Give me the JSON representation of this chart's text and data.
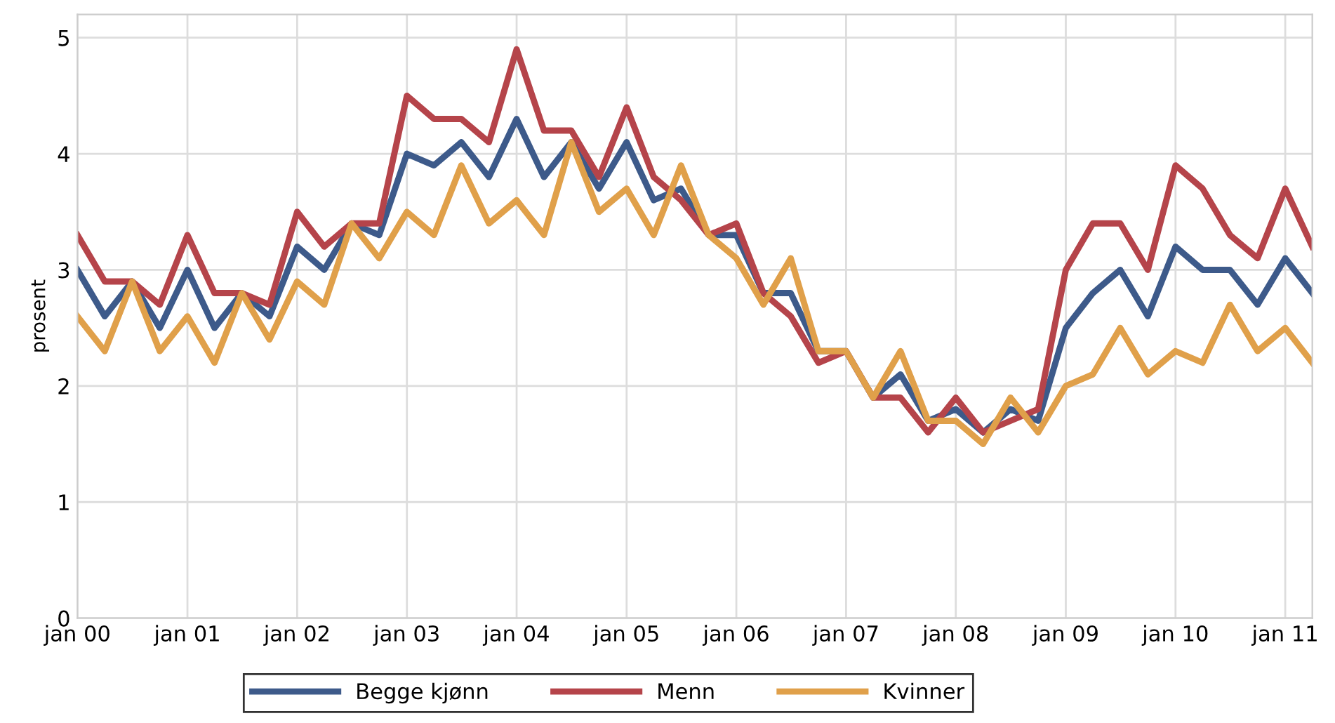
{
  "chart_data": {
    "type": "line",
    "ylabel": "prosent",
    "x": [
      "2000-01",
      "2000-04",
      "2000-07",
      "2000-10",
      "2001-01",
      "2001-04",
      "2001-07",
      "2001-10",
      "2002-01",
      "2002-04",
      "2002-07",
      "2002-10",
      "2003-01",
      "2003-04",
      "2003-07",
      "2003-10",
      "2004-01",
      "2004-04",
      "2004-07",
      "2004-10",
      "2005-01",
      "2005-04",
      "2005-07",
      "2005-10",
      "2006-01",
      "2006-04",
      "2006-07",
      "2006-10",
      "2007-01",
      "2007-04",
      "2007-07",
      "2007-10",
      "2008-01",
      "2008-04",
      "2008-07",
      "2008-10",
      "2009-01",
      "2009-04",
      "2009-07",
      "2009-10",
      "2010-01",
      "2010-04",
      "2010-07",
      "2010-10",
      "2011-01",
      "2011-04"
    ],
    "series": [
      {
        "name": "Begge kjønn",
        "color": "#3d5a8a",
        "values": [
          3.0,
          2.6,
          2.9,
          2.5,
          3.0,
          2.5,
          2.8,
          2.6,
          3.2,
          3.0,
          3.4,
          3.3,
          4.0,
          3.9,
          4.1,
          3.8,
          4.3,
          3.8,
          4.1,
          3.7,
          4.1,
          3.6,
          3.7,
          3.3,
          3.3,
          2.8,
          2.8,
          2.3,
          2.3,
          1.9,
          2.1,
          1.7,
          1.8,
          1.6,
          1.8,
          1.7,
          2.5,
          2.8,
          3.0,
          2.6,
          3.2,
          3.0,
          3.0,
          2.7,
          3.1,
          2.8
        ]
      },
      {
        "name": "Menn",
        "color": "#b5444a",
        "values": [
          3.3,
          2.9,
          2.9,
          2.7,
          3.3,
          2.8,
          2.8,
          2.7,
          3.5,
          3.2,
          3.4,
          3.4,
          4.5,
          4.3,
          4.3,
          4.1,
          4.9,
          4.2,
          4.2,
          3.8,
          4.4,
          3.8,
          3.6,
          3.3,
          3.4,
          2.8,
          2.6,
          2.2,
          2.3,
          1.9,
          1.9,
          1.6,
          1.9,
          1.6,
          1.7,
          1.8,
          3.0,
          3.4,
          3.4,
          3.0,
          3.9,
          3.7,
          3.3,
          3.1,
          3.7,
          3.2
        ]
      },
      {
        "name": "Kvinner",
        "color": "#e0a04a",
        "values": [
          2.6,
          2.3,
          2.9,
          2.3,
          2.6,
          2.2,
          2.8,
          2.4,
          2.9,
          2.7,
          3.4,
          3.1,
          3.5,
          3.3,
          3.9,
          3.4,
          3.6,
          3.3,
          4.1,
          3.5,
          3.7,
          3.3,
          3.9,
          3.3,
          3.1,
          2.7,
          3.1,
          2.3,
          2.3,
          1.9,
          2.3,
          1.7,
          1.7,
          1.5,
          1.9,
          1.6,
          2.0,
          2.1,
          2.5,
          2.1,
          2.3,
          2.2,
          2.7,
          2.3,
          2.5,
          2.2
        ]
      }
    ],
    "xlim": [
      "2000-01",
      "2011-04"
    ],
    "xticks": [
      {
        "value": "2000-01",
        "label": "jan 00"
      },
      {
        "value": "2001-01",
        "label": "jan 01"
      },
      {
        "value": "2002-01",
        "label": "jan 02"
      },
      {
        "value": "2003-01",
        "label": "jan 03"
      },
      {
        "value": "2004-01",
        "label": "jan 04"
      },
      {
        "value": "2005-01",
        "label": "jan 05"
      },
      {
        "value": "2006-01",
        "label": "jan 06"
      },
      {
        "value": "2007-01",
        "label": "jan 07"
      },
      {
        "value": "2008-01",
        "label": "jan 08"
      },
      {
        "value": "2009-01",
        "label": "jan 09"
      },
      {
        "value": "2010-01",
        "label": "jan 10"
      },
      {
        "value": "2011-01",
        "label": "jan 11"
      }
    ],
    "ylim": [
      0,
      5.2
    ],
    "yticks": [
      0,
      1,
      2,
      3,
      4,
      5
    ],
    "grid": true,
    "legend": "bottom",
    "marker": "none",
    "line_style": "solid"
  }
}
